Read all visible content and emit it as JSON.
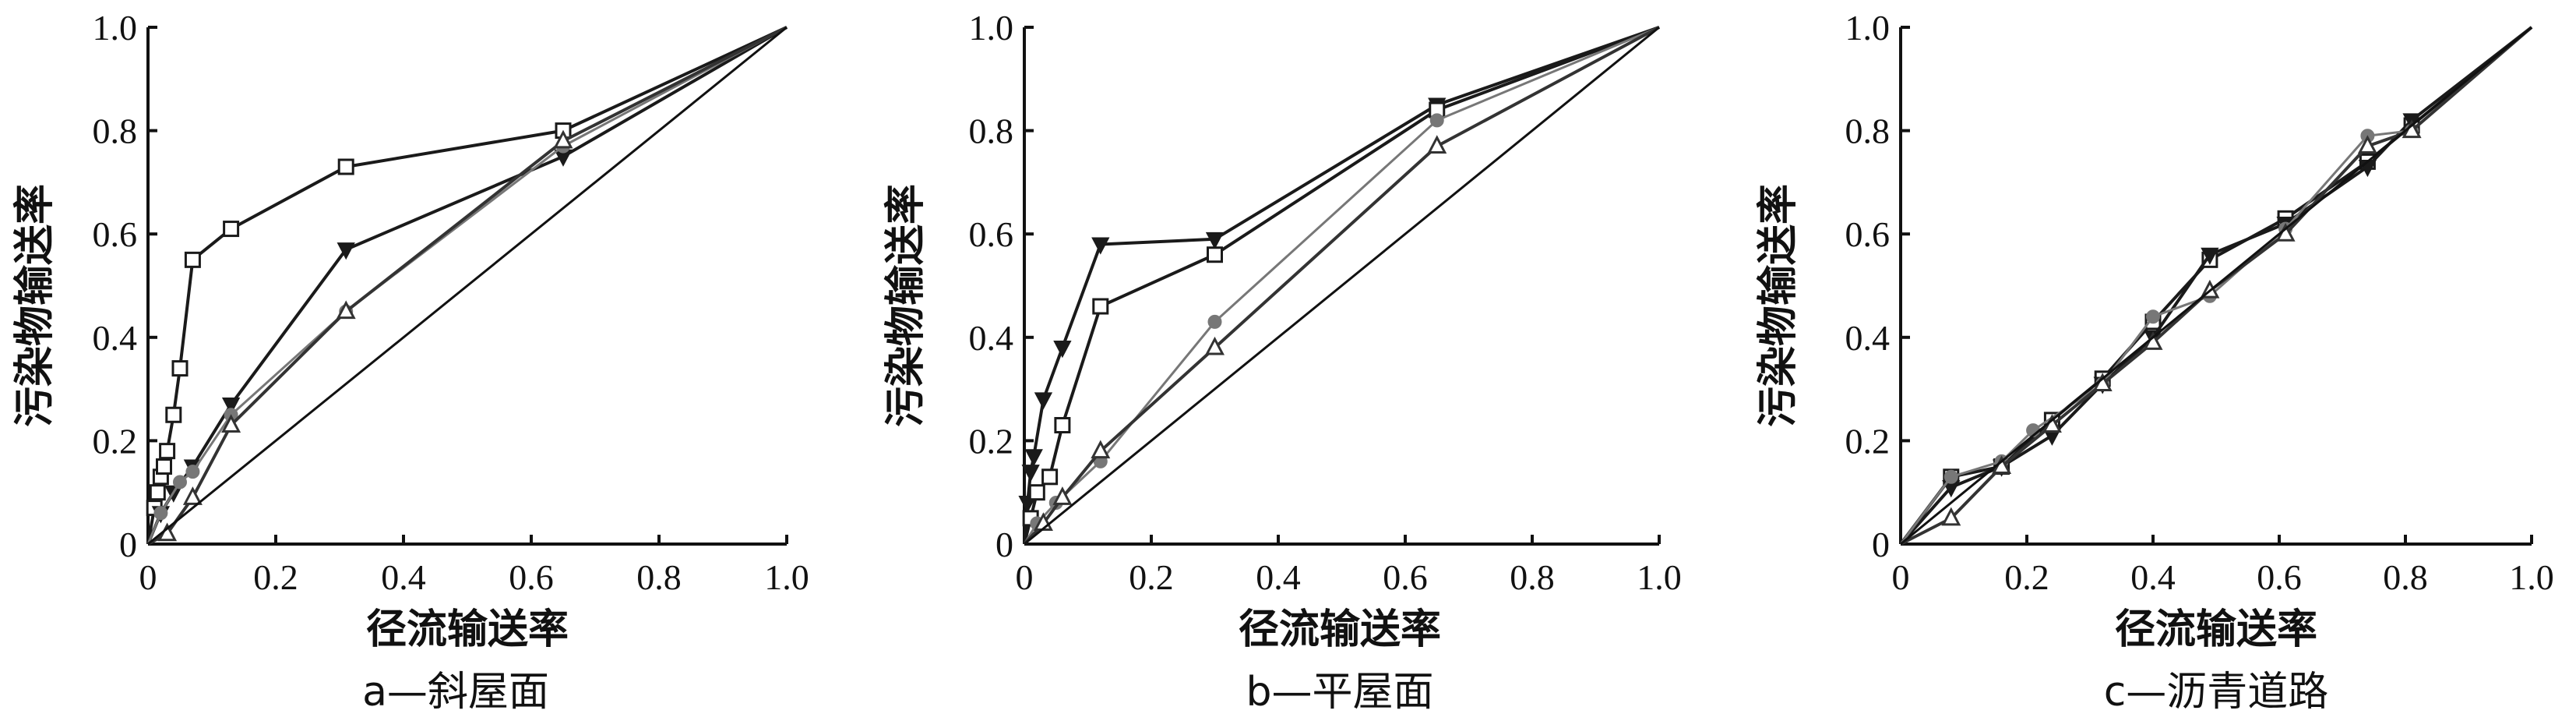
{
  "chart_data": [
    {
      "type": "line",
      "caption": "a—斜屋面",
      "xlabel": "径流输送率",
      "ylabel": "污染物输送率",
      "xlim": [
        0,
        1
      ],
      "ylim": [
        0,
        1
      ],
      "xticks": [
        "0",
        "0.2",
        "0.4",
        "0.6",
        "0.8",
        "1.0"
      ],
      "yticks": [
        "0",
        "0.2",
        "0.4",
        "0.6",
        "0.8",
        "1.0"
      ],
      "series": [
        {
          "marker": "square",
          "color": "#1a1a1a",
          "points": [
            [
              0,
              0
            ],
            [
              0.01,
              0.07
            ],
            [
              0.015,
              0.1
            ],
            [
              0.02,
              0.13
            ],
            [
              0.025,
              0.15
            ],
            [
              0.03,
              0.18
            ],
            [
              0.04,
              0.25
            ],
            [
              0.05,
              0.34
            ],
            [
              0.07,
              0.55
            ],
            [
              0.13,
              0.61
            ],
            [
              0.31,
              0.73
            ],
            [
              0.65,
              0.8
            ],
            [
              1,
              1
            ]
          ]
        },
        {
          "marker": "triangle-down",
          "color": "#1a1a1a",
          "points": [
            [
              0,
              0
            ],
            [
              0.02,
              0.06
            ],
            [
              0.04,
              0.1
            ],
            [
              0.07,
              0.15
            ],
            [
              0.13,
              0.27
            ],
            [
              0.31,
              0.57
            ],
            [
              0.65,
              0.75
            ],
            [
              1,
              1
            ]
          ]
        },
        {
          "marker": "circle",
          "color": "#777777",
          "points": [
            [
              0,
              0
            ],
            [
              0.02,
              0.06
            ],
            [
              0.05,
              0.12
            ],
            [
              0.07,
              0.14
            ],
            [
              0.13,
              0.25
            ],
            [
              0.31,
              0.45
            ],
            [
              0.65,
              0.77
            ],
            [
              1,
              1
            ]
          ]
        },
        {
          "marker": "triangle-up",
          "color": "#333333",
          "points": [
            [
              0,
              0
            ],
            [
              0.03,
              0.02
            ],
            [
              0.07,
              0.09
            ],
            [
              0.13,
              0.23
            ],
            [
              0.31,
              0.45
            ],
            [
              0.65,
              0.78
            ],
            [
              1,
              1
            ]
          ]
        },
        {
          "marker": "none",
          "color": "#111111",
          "points": [
            [
              0,
              0
            ],
            [
              1,
              1
            ]
          ]
        }
      ]
    },
    {
      "type": "line",
      "caption": "b—平屋面",
      "xlabel": "径流输送率",
      "ylabel": "污染物输送率",
      "xlim": [
        0,
        1
      ],
      "ylim": [
        0,
        1
      ],
      "xticks": [
        "0",
        "0.2",
        "0.4",
        "0.6",
        "0.8",
        "1.0"
      ],
      "yticks": [
        "0",
        "0.2",
        "0.4",
        "0.6",
        "0.8",
        "1.0"
      ],
      "series": [
        {
          "marker": "triangle-down",
          "color": "#1a1a1a",
          "points": [
            [
              0,
              0
            ],
            [
              0.005,
              0.08
            ],
            [
              0.01,
              0.14
            ],
            [
              0.015,
              0.17
            ],
            [
              0.03,
              0.28
            ],
            [
              0.06,
              0.38
            ],
            [
              0.12,
              0.58
            ],
            [
              0.3,
              0.59
            ],
            [
              0.65,
              0.85
            ],
            [
              1,
              1
            ]
          ]
        },
        {
          "marker": "square",
          "color": "#1a1a1a",
          "points": [
            [
              0,
              0
            ],
            [
              0.01,
              0.05
            ],
            [
              0.02,
              0.1
            ],
            [
              0.04,
              0.13
            ],
            [
              0.06,
              0.23
            ],
            [
              0.12,
              0.46
            ],
            [
              0.3,
              0.56
            ],
            [
              0.65,
              0.84
            ],
            [
              1,
              1
            ]
          ]
        },
        {
          "marker": "circle",
          "color": "#777777",
          "points": [
            [
              0,
              0
            ],
            [
              0.02,
              0.04
            ],
            [
              0.05,
              0.08
            ],
            [
              0.12,
              0.16
            ],
            [
              0.3,
              0.43
            ],
            [
              0.65,
              0.82
            ],
            [
              1,
              1
            ]
          ]
        },
        {
          "marker": "triangle-up",
          "color": "#333333",
          "points": [
            [
              0,
              0
            ],
            [
              0.03,
              0.04
            ],
            [
              0.06,
              0.09
            ],
            [
              0.12,
              0.18
            ],
            [
              0.3,
              0.38
            ],
            [
              0.65,
              0.77
            ],
            [
              1,
              1
            ]
          ]
        },
        {
          "marker": "none",
          "color": "#111111",
          "points": [
            [
              0,
              0
            ],
            [
              1,
              1
            ]
          ]
        }
      ]
    },
    {
      "type": "line",
      "caption": "c—沥青道路",
      "xlabel": "径流输送率",
      "ylabel": "污染物输送率",
      "xlim": [
        0,
        1
      ],
      "ylim": [
        0,
        1
      ],
      "xticks": [
        "0",
        "0.2",
        "0.4",
        "0.6",
        "0.8",
        "1.0"
      ],
      "yticks": [
        "0",
        "0.2",
        "0.4",
        "0.6",
        "0.8",
        "1.0"
      ],
      "series": [
        {
          "marker": "square",
          "color": "#1a1a1a",
          "points": [
            [
              0,
              0
            ],
            [
              0.08,
              0.13
            ],
            [
              0.16,
              0.15
            ],
            [
              0.24,
              0.24
            ],
            [
              0.32,
              0.32
            ],
            [
              0.4,
              0.43
            ],
            [
              0.49,
              0.55
            ],
            [
              0.61,
              0.63
            ],
            [
              0.74,
              0.74
            ],
            [
              0.81,
              0.81
            ],
            [
              1,
              1
            ]
          ]
        },
        {
          "marker": "triangle-down",
          "color": "#1a1a1a",
          "points": [
            [
              0,
              0
            ],
            [
              0.08,
              0.11
            ],
            [
              0.16,
              0.15
            ],
            [
              0.24,
              0.21
            ],
            [
              0.32,
              0.31
            ],
            [
              0.4,
              0.4
            ],
            [
              0.49,
              0.56
            ],
            [
              0.61,
              0.62
            ],
            [
              0.74,
              0.73
            ],
            [
              0.81,
              0.82
            ],
            [
              1,
              1
            ]
          ]
        },
        {
          "marker": "circle",
          "color": "#777777",
          "points": [
            [
              0,
              0
            ],
            [
              0.08,
              0.13
            ],
            [
              0.16,
              0.16
            ],
            [
              0.21,
              0.22
            ],
            [
              0.32,
              0.31
            ],
            [
              0.4,
              0.44
            ],
            [
              0.49,
              0.48
            ],
            [
              0.61,
              0.61
            ],
            [
              0.74,
              0.79
            ],
            [
              0.81,
              0.8
            ],
            [
              1,
              1
            ]
          ]
        },
        {
          "marker": "triangle-up",
          "color": "#333333",
          "points": [
            [
              0,
              0
            ],
            [
              0.08,
              0.05
            ],
            [
              0.16,
              0.15
            ],
            [
              0.24,
              0.23
            ],
            [
              0.32,
              0.31
            ],
            [
              0.4,
              0.39
            ],
            [
              0.49,
              0.49
            ],
            [
              0.61,
              0.6
            ],
            [
              0.74,
              0.77
            ],
            [
              0.81,
              0.8
            ],
            [
              1,
              1
            ]
          ]
        },
        {
          "marker": "none",
          "color": "#111111",
          "points": [
            [
              0,
              0
            ],
            [
              1,
              1
            ]
          ]
        }
      ]
    }
  ]
}
